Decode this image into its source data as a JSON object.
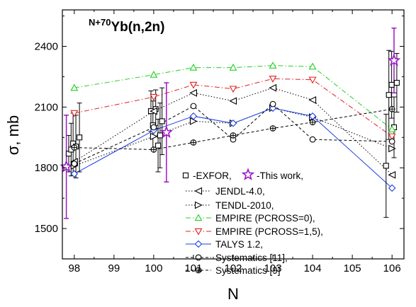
{
  "chart_data": {
    "type": "scatter",
    "title_sup": "N+70",
    "title_main": "Yb(n,2n)",
    "xlabel": "N",
    "ylabel": "σ, mb",
    "xlim": [
      97.7,
      106.3
    ],
    "ylim": [
      1350,
      2580
    ],
    "xticks": [
      98,
      99,
      100,
      101,
      102,
      103,
      104,
      105,
      106
    ],
    "yticks": [
      1500,
      1800,
      2100,
      2400
    ],
    "series": [
      {
        "name": "-EXFOR,",
        "style": "points",
        "marker": "square-open",
        "color": "#000000",
        "points": [
          {
            "x": 97.86,
            "y": 1870,
            "err": 90
          },
          {
            "x": 97.92,
            "y": 1890,
            "err": 130
          },
          {
            "x": 97.97,
            "y": 1920,
            "err": 150
          },
          {
            "x": 98.04,
            "y": 1905,
            "err": 155
          },
          {
            "x": 98.13,
            "y": 1950,
            "err": 170
          },
          {
            "x": 99.93,
            "y": 2080,
            "err": 100
          },
          {
            "x": 99.98,
            "y": 2010,
            "err": 120
          },
          {
            "x": 100.05,
            "y": 2090,
            "err": 95
          },
          {
            "x": 100.11,
            "y": 1910,
            "err": 130
          },
          {
            "x": 100.16,
            "y": 1960,
            "err": 160
          },
          {
            "x": 100.21,
            "y": 2030,
            "err": 165
          },
          {
            "x": 105.85,
            "y": 1810,
            "err": 255
          },
          {
            "x": 105.92,
            "y": 2160,
            "err": 220
          },
          {
            "x": 105.99,
            "y": 2210,
            "err": 165
          },
          {
            "x": 106.05,
            "y": 2000,
            "err": 150
          },
          {
            "x": 106.12,
            "y": 2220,
            "err": 145
          }
        ]
      },
      {
        "name": "-This work,",
        "style": "points",
        "marker": "star-open",
        "color": "#9B18C4",
        "points": [
          {
            "x": 97.8,
            "y": 1805,
            "err": 255
          },
          {
            "x": 100.32,
            "y": 1975,
            "err": 245
          },
          {
            "x": 106.05,
            "y": 2330,
            "err": 160
          }
        ]
      },
      {
        "name": "JENDL-4.0,",
        "style": "dot",
        "marker": "tri-left",
        "color": "#000000",
        "points": [
          {
            "x": 98,
            "y": 1830
          },
          {
            "x": 100,
            "y": 2080
          },
          {
            "x": 101,
            "y": 2170
          },
          {
            "x": 102,
            "y": 2130
          },
          {
            "x": 103,
            "y": 2195
          },
          {
            "x": 104,
            "y": 2135
          },
          {
            "x": 106,
            "y": 1765
          }
        ]
      },
      {
        "name": "TENDL-2010,",
        "style": "dot",
        "marker": "tri-right",
        "color": "#000000",
        "points": [
          {
            "x": 98,
            "y": 1810
          },
          {
            "x": 100,
            "y": 1955
          },
          {
            "x": 101,
            "y": 2030
          },
          {
            "x": 102,
            "y": 2020
          },
          {
            "x": 103,
            "y": 2095
          },
          {
            "x": 104,
            "y": 2050
          },
          {
            "x": 106,
            "y": 1895
          }
        ]
      },
      {
        "name": "EMPIRE (PCROSS=0),",
        "style": "dashdot",
        "marker": "tri-up",
        "color": "#22D022",
        "points": [
          {
            "x": 98,
            "y": 2195
          },
          {
            "x": 100,
            "y": 2260
          },
          {
            "x": 101,
            "y": 2295
          },
          {
            "x": 102,
            "y": 2295
          },
          {
            "x": 103,
            "y": 2305
          },
          {
            "x": 104,
            "y": 2300
          },
          {
            "x": 106,
            "y": 1990
          }
        ]
      },
      {
        "name": "EMPIRE (PCROSS=1,5),",
        "style": "dashdot",
        "marker": "tri-down",
        "color": "#E02020",
        "points": [
          {
            "x": 98,
            "y": 2070
          },
          {
            "x": 100,
            "y": 2150
          },
          {
            "x": 101,
            "y": 2210
          },
          {
            "x": 102,
            "y": 2190
          },
          {
            "x": 103,
            "y": 2240
          },
          {
            "x": 104,
            "y": 2235
          },
          {
            "x": 106,
            "y": 1955
          }
        ]
      },
      {
        "name": "TALYS 1.2,",
        "style": "solid",
        "marker": "diamond",
        "color": "#1A3FE6",
        "points": [
          {
            "x": 98,
            "y": 1770
          },
          {
            "x": 100,
            "y": 1985
          },
          {
            "x": 101,
            "y": 2055
          },
          {
            "x": 102,
            "y": 2020
          },
          {
            "x": 103,
            "y": 2095
          },
          {
            "x": 104,
            "y": 2055
          },
          {
            "x": 106,
            "y": 1700
          }
        ]
      },
      {
        "name": "Systematics [11],",
        "style": "dash",
        "marker": "circle",
        "color": "#000000",
        "points": [
          {
            "x": 98,
            "y": 1820
          },
          {
            "x": 100,
            "y": 2000
          },
          {
            "x": 101,
            "y": 2105
          },
          {
            "x": 102,
            "y": 1940
          },
          {
            "x": 103,
            "y": 2115
          },
          {
            "x": 104,
            "y": 1940
          },
          {
            "x": 106,
            "y": 1930
          }
        ]
      },
      {
        "name": "Systematics [9]",
        "style": "dash",
        "marker": "circle-plus",
        "color": "#000000",
        "points": [
          {
            "x": 98,
            "y": 1900
          },
          {
            "x": 100,
            "y": 1890
          },
          {
            "x": 101,
            "y": 1925
          },
          {
            "x": 102,
            "y": 1960
          },
          {
            "x": 103,
            "y": 1995
          },
          {
            "x": 104,
            "y": 2025
          },
          {
            "x": 106,
            "y": 2090
          }
        ]
      }
    ]
  }
}
